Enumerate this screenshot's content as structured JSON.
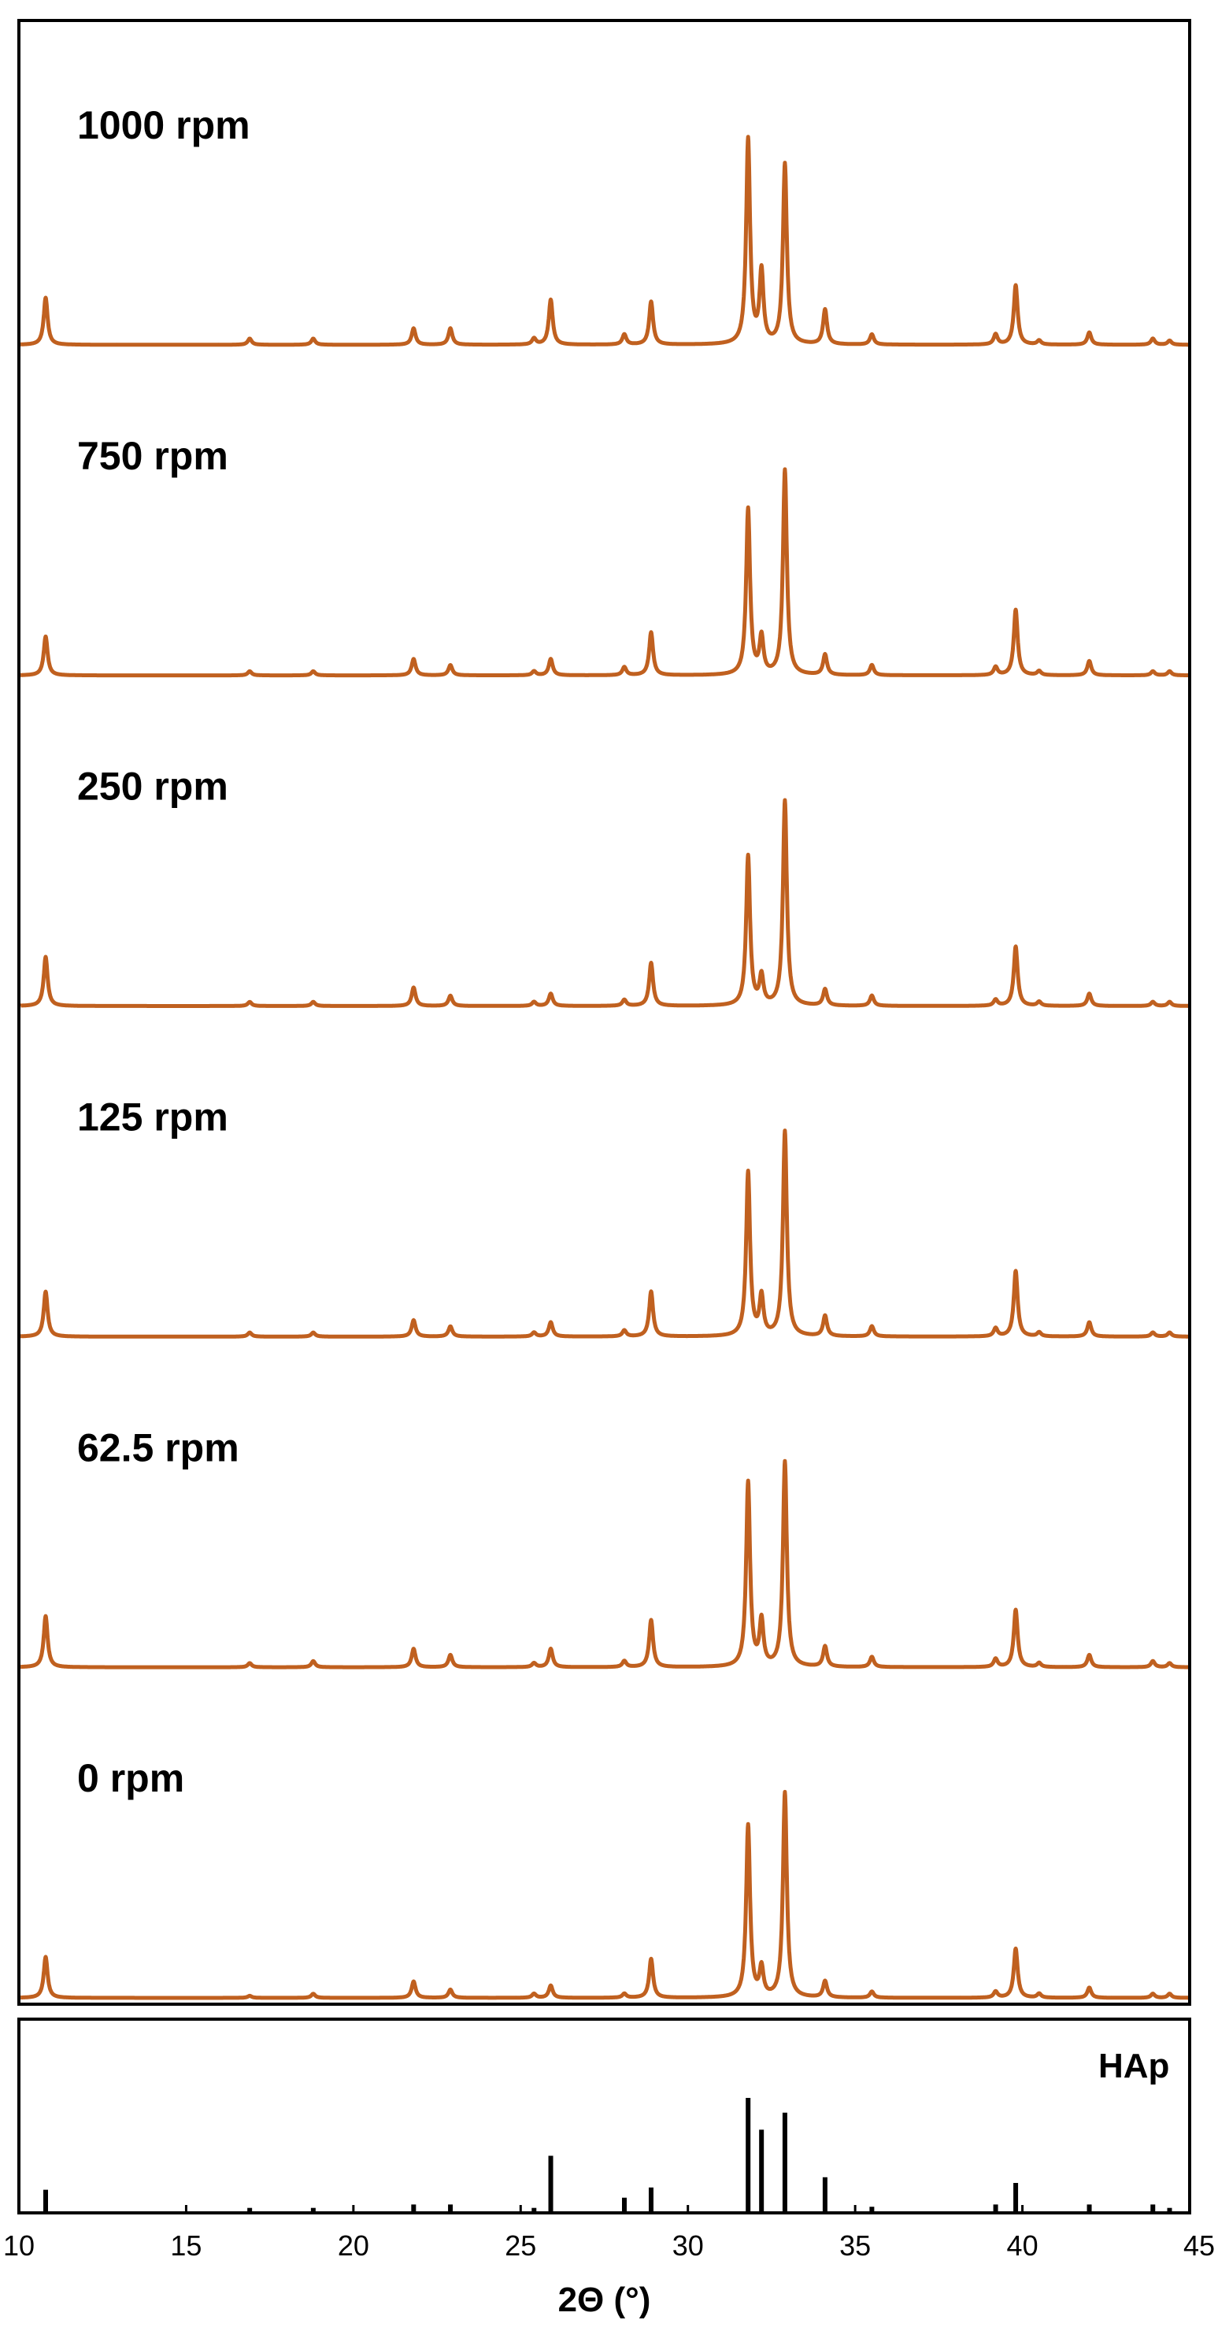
{
  "chart_data": {
    "type": "line",
    "xlabel": "2Θ (°)",
    "ylabel": "",
    "xlim": [
      10,
      45
    ],
    "x_ticks": [
      10,
      15,
      20,
      25,
      30,
      35,
      40,
      45
    ],
    "colors": {
      "series": "#C0601F",
      "reference": "#000000",
      "frame": "#000000"
    },
    "grid": false,
    "legend": "none",
    "peaks_2theta": [
      10.8,
      16.9,
      18.8,
      21.8,
      22.9,
      25.4,
      25.9,
      28.1,
      28.9,
      31.8,
      32.2,
      32.9,
      34.1,
      35.5,
      39.2,
      39.8,
      40.5,
      42.0,
      43.9,
      44.4
    ],
    "series": [
      {
        "name": "1000 rpm",
        "peak_heights": [
          0.23,
          0.03,
          0.03,
          0.08,
          0.08,
          0.03,
          0.22,
          0.05,
          0.21,
          1.0,
          0.35,
          0.88,
          0.17,
          0.05,
          0.05,
          0.29,
          0.02,
          0.06,
          0.03,
          0.02
        ]
      },
      {
        "name": "750 rpm",
        "peak_heights": [
          0.19,
          0.02,
          0.02,
          0.08,
          0.05,
          0.02,
          0.08,
          0.04,
          0.21,
          0.81,
          0.18,
          1.0,
          0.1,
          0.05,
          0.04,
          0.32,
          0.02,
          0.07,
          0.02,
          0.02
        ]
      },
      {
        "name": "250 rpm",
        "peak_heights": [
          0.24,
          0.02,
          0.02,
          0.09,
          0.05,
          0.02,
          0.06,
          0.03,
          0.21,
          0.73,
          0.14,
          1.0,
          0.08,
          0.05,
          0.03,
          0.29,
          0.02,
          0.06,
          0.02,
          0.02
        ]
      },
      {
        "name": "125 rpm",
        "peak_heights": [
          0.22,
          0.02,
          0.02,
          0.08,
          0.05,
          0.02,
          0.07,
          0.03,
          0.22,
          0.8,
          0.19,
          1.0,
          0.1,
          0.05,
          0.04,
          0.32,
          0.02,
          0.07,
          0.02,
          0.02
        ]
      },
      {
        "name": "62.5 rpm",
        "peak_heights": [
          0.25,
          0.02,
          0.03,
          0.09,
          0.06,
          0.02,
          0.09,
          0.03,
          0.23,
          0.9,
          0.22,
          1.0,
          0.1,
          0.05,
          0.04,
          0.28,
          0.02,
          0.06,
          0.03,
          0.02
        ]
      },
      {
        "name": "0 rpm",
        "peak_heights": [
          0.2,
          0.01,
          0.02,
          0.08,
          0.04,
          0.02,
          0.06,
          0.02,
          0.19,
          0.84,
          0.14,
          1.0,
          0.08,
          0.03,
          0.03,
          0.24,
          0.02,
          0.05,
          0.02,
          0.02
        ]
      }
    ],
    "reference": {
      "name": "HAp",
      "sticks": [
        {
          "x": 10.8,
          "h": 0.19
        },
        {
          "x": 16.9,
          "h": 0.03
        },
        {
          "x": 18.8,
          "h": 0.03
        },
        {
          "x": 21.8,
          "h": 0.06
        },
        {
          "x": 22.9,
          "h": 0.06
        },
        {
          "x": 25.4,
          "h": 0.03
        },
        {
          "x": 25.9,
          "h": 0.49
        },
        {
          "x": 28.1,
          "h": 0.12
        },
        {
          "x": 28.9,
          "h": 0.21
        },
        {
          "x": 31.8,
          "h": 1.0
        },
        {
          "x": 32.2,
          "h": 0.72
        },
        {
          "x": 32.9,
          "h": 0.87
        },
        {
          "x": 34.1,
          "h": 0.3
        },
        {
          "x": 35.5,
          "h": 0.04
        },
        {
          "x": 39.2,
          "h": 0.06
        },
        {
          "x": 39.8,
          "h": 0.25
        },
        {
          "x": 42.0,
          "h": 0.06
        },
        {
          "x": 43.9,
          "h": 0.06
        },
        {
          "x": 44.4,
          "h": 0.03
        }
      ]
    }
  }
}
